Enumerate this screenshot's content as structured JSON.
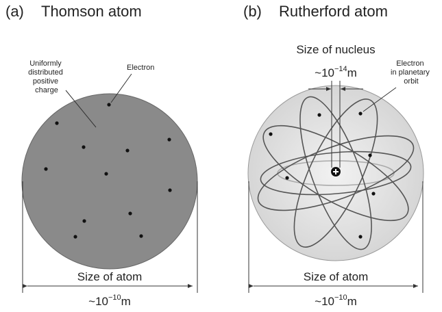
{
  "panels": [
    {
      "label": "(a)",
      "title": "Thomson atom",
      "charge_note": [
        "Uniformly",
        "distributed",
        "positive",
        "charge"
      ],
      "electron_note": "Electron",
      "size": {
        "label": "Size of atom",
        "base": "~10",
        "exponent": "−10",
        "unit": "m"
      }
    },
    {
      "label": "(b)",
      "title": "Rutherford atom",
      "nucleus": {
        "label": "Size of nucleus",
        "base": "~10",
        "exponent": "−14",
        "unit": "m"
      },
      "electron_note": [
        "Electron",
        "in planetary",
        "orbit"
      ],
      "size": {
        "label": "Size of atom",
        "base": "~10",
        "exponent": "−10",
        "unit": "m"
      }
    }
  ]
}
